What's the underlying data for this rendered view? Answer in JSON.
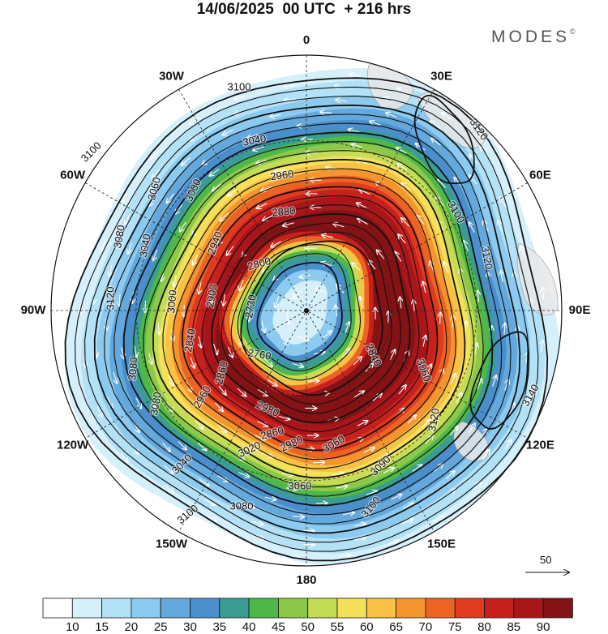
{
  "title": "14/06/2025  00 UTC  + 216 hrs",
  "brand": {
    "name": "MODES",
    "mark": "©"
  },
  "longitude_labels": [
    {
      "text": "0",
      "lon": 0
    },
    {
      "text": "30E",
      "lon": 30
    },
    {
      "text": "60E",
      "lon": 60
    },
    {
      "text": "90E",
      "lon": 90
    },
    {
      "text": "120E",
      "lon": 120
    },
    {
      "text": "150E",
      "lon": 150
    },
    {
      "text": "180",
      "lon": 180
    },
    {
      "text": "150W",
      "lon": -150
    },
    {
      "text": "120W",
      "lon": -120
    },
    {
      "text": "90W",
      "lon": -90
    },
    {
      "text": "60W",
      "lon": -60
    },
    {
      "text": "30W",
      "lon": -30
    }
  ],
  "contour_labels": [
    {
      "text": "3100"
    },
    {
      "text": "3120"
    },
    {
      "text": "3040"
    },
    {
      "text": "3100"
    },
    {
      "text": "2960"
    },
    {
      "text": "3060"
    },
    {
      "text": "3000"
    },
    {
      "text": "2880"
    },
    {
      "text": "3100"
    },
    {
      "text": "3080"
    },
    {
      "text": "3040"
    },
    {
      "text": "2940"
    },
    {
      "text": "2800"
    },
    {
      "text": "3120"
    },
    {
      "text": "3120"
    },
    {
      "text": "2730"
    },
    {
      "text": "3000"
    },
    {
      "text": "2900"
    },
    {
      "text": "2840"
    },
    {
      "text": "3080"
    },
    {
      "text": "2760"
    },
    {
      "text": "2840"
    },
    {
      "text": "2860"
    },
    {
      "text": "3060"
    },
    {
      "text": "3140"
    },
    {
      "text": "3080"
    },
    {
      "text": "2960"
    },
    {
      "text": "2980"
    },
    {
      "text": "2860"
    },
    {
      "text": "3120"
    },
    {
      "text": "3060"
    },
    {
      "text": "2980"
    },
    {
      "text": "3020"
    },
    {
      "text": "3040"
    },
    {
      "text": "3090"
    },
    {
      "text": "3060"
    },
    {
      "text": "3080"
    },
    {
      "text": "3100"
    },
    {
      "text": "3100"
    }
  ],
  "reference_vector": {
    "label": "50"
  },
  "colorbar": {
    "labels": [
      "10",
      "15",
      "20",
      "25",
      "30",
      "35",
      "40",
      "45",
      "50",
      "55",
      "60",
      "65",
      "70",
      "75",
      "80",
      "85",
      "90"
    ],
    "colors": [
      "#ffffff",
      "#d6f0fb",
      "#b3e2f7",
      "#8ccbef",
      "#65a9dc",
      "#4a8fcb",
      "#3a9c92",
      "#4fb848",
      "#8cc94a",
      "#c5dd56",
      "#f5e05a",
      "#f8c244",
      "#f4952f",
      "#eb6424",
      "#e03a1f",
      "#c8201e",
      "#a8161a",
      "#851214"
    ]
  }
}
